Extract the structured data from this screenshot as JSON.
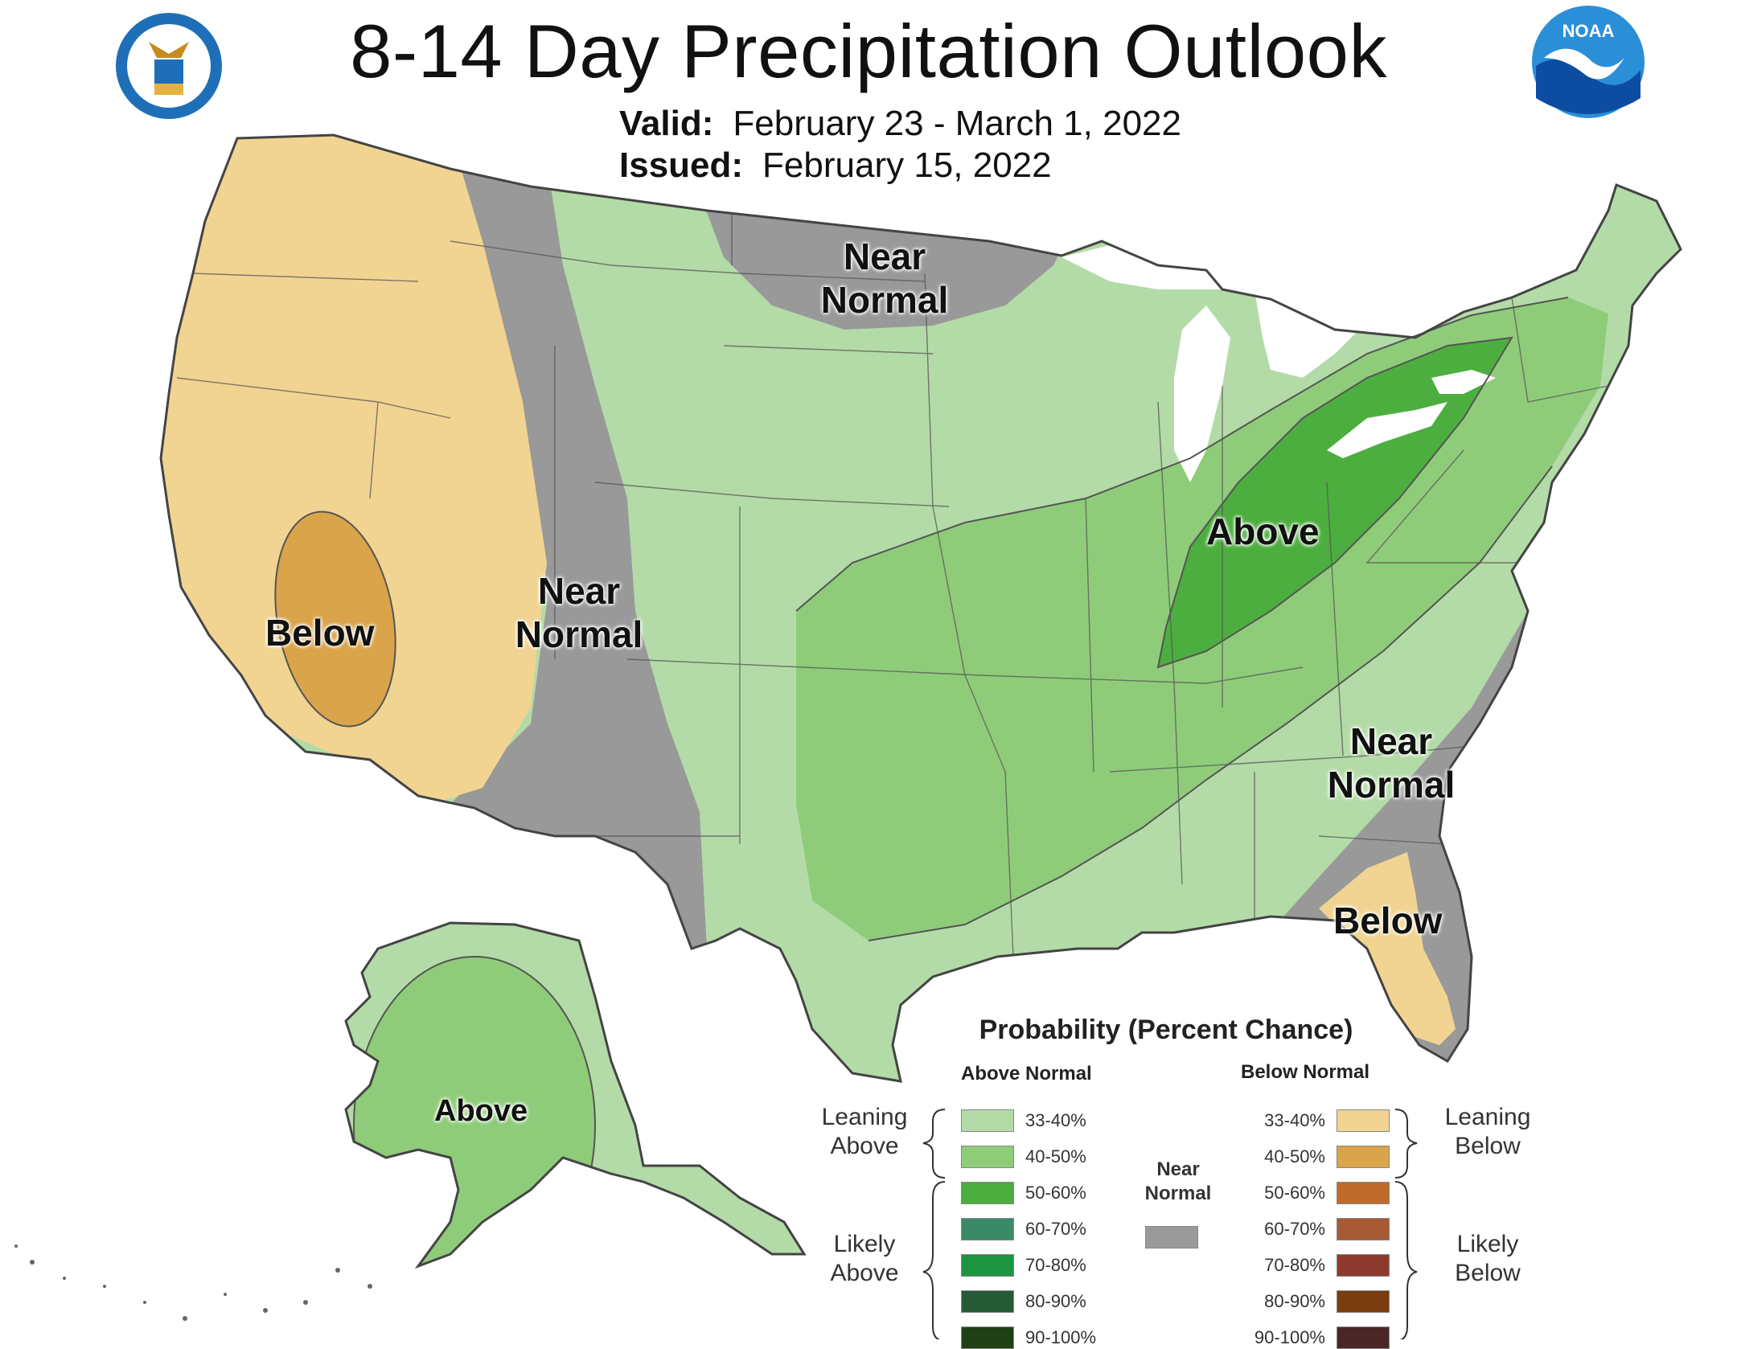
{
  "header": {
    "title": "8-14 Day Precipitation Outlook",
    "valid_key": "Valid:",
    "valid_value": "February 23 - March 1, 2022",
    "issued_key": "Issued:",
    "issued_value": "February 15, 2022",
    "left_logo": "department-of-commerce-seal",
    "right_logo": "noaa-logo",
    "right_logo_text": "NOAA"
  },
  "regions": {
    "west_below": "Below",
    "west_near_normal_1": "Near",
    "west_near_normal_2": "Normal",
    "north_near_normal_1": "Near",
    "north_near_normal_2": "Normal",
    "ohio_above": "Above",
    "se_near_normal_1": "Near",
    "se_near_normal_2": "Normal",
    "fl_below": "Below",
    "ak_above": "Above"
  },
  "legend": {
    "title": "Probability (Percent Chance)",
    "above_header": "Above Normal",
    "below_header": "Below Normal",
    "above": [
      {
        "label": "33-40%",
        "color": "#b3dba7"
      },
      {
        "label": "40-50%",
        "color": "#8fcc7a"
      },
      {
        "label": "50-60%",
        "color": "#4cae3e"
      },
      {
        "label": "60-70%",
        "color": "#3a8a68"
      },
      {
        "label": "70-80%",
        "color": "#1c9440"
      },
      {
        "label": "80-90%",
        "color": "#265a36"
      },
      {
        "label": "90-100%",
        "color": "#1f3f16"
      }
    ],
    "below": [
      {
        "label": "33-40%",
        "color": "#f1d492"
      },
      {
        "label": "40-50%",
        "color": "#d9a44a"
      },
      {
        "label": "50-60%",
        "color": "#c06a2c"
      },
      {
        "label": "60-70%",
        "color": "#a85a34"
      },
      {
        "label": "70-80%",
        "color": "#8e3a2e"
      },
      {
        "label": "80-90%",
        "color": "#7a3d0e"
      },
      {
        "label": "90-100%",
        "color": "#4a2626"
      }
    ],
    "near_1": "Near",
    "near_2": "Normal",
    "near_color": "#9a9a9a",
    "leaning_above_1": "Leaning",
    "leaning_above_2": "Above",
    "likely_above_1": "Likely",
    "likely_above_2": "Above",
    "leaning_below_1": "Leaning",
    "leaning_below_2": "Below",
    "likely_below_1": "Likely",
    "likely_below_2": "Below"
  },
  "colors": {
    "near_normal_gray": "#999999",
    "lean_above": "#b3dba7",
    "above_40": "#8fcc7a",
    "above_50": "#4cae3e",
    "lean_below": "#f1d492",
    "below_40": "#d9a44a",
    "lake_water": "#ffffff"
  }
}
